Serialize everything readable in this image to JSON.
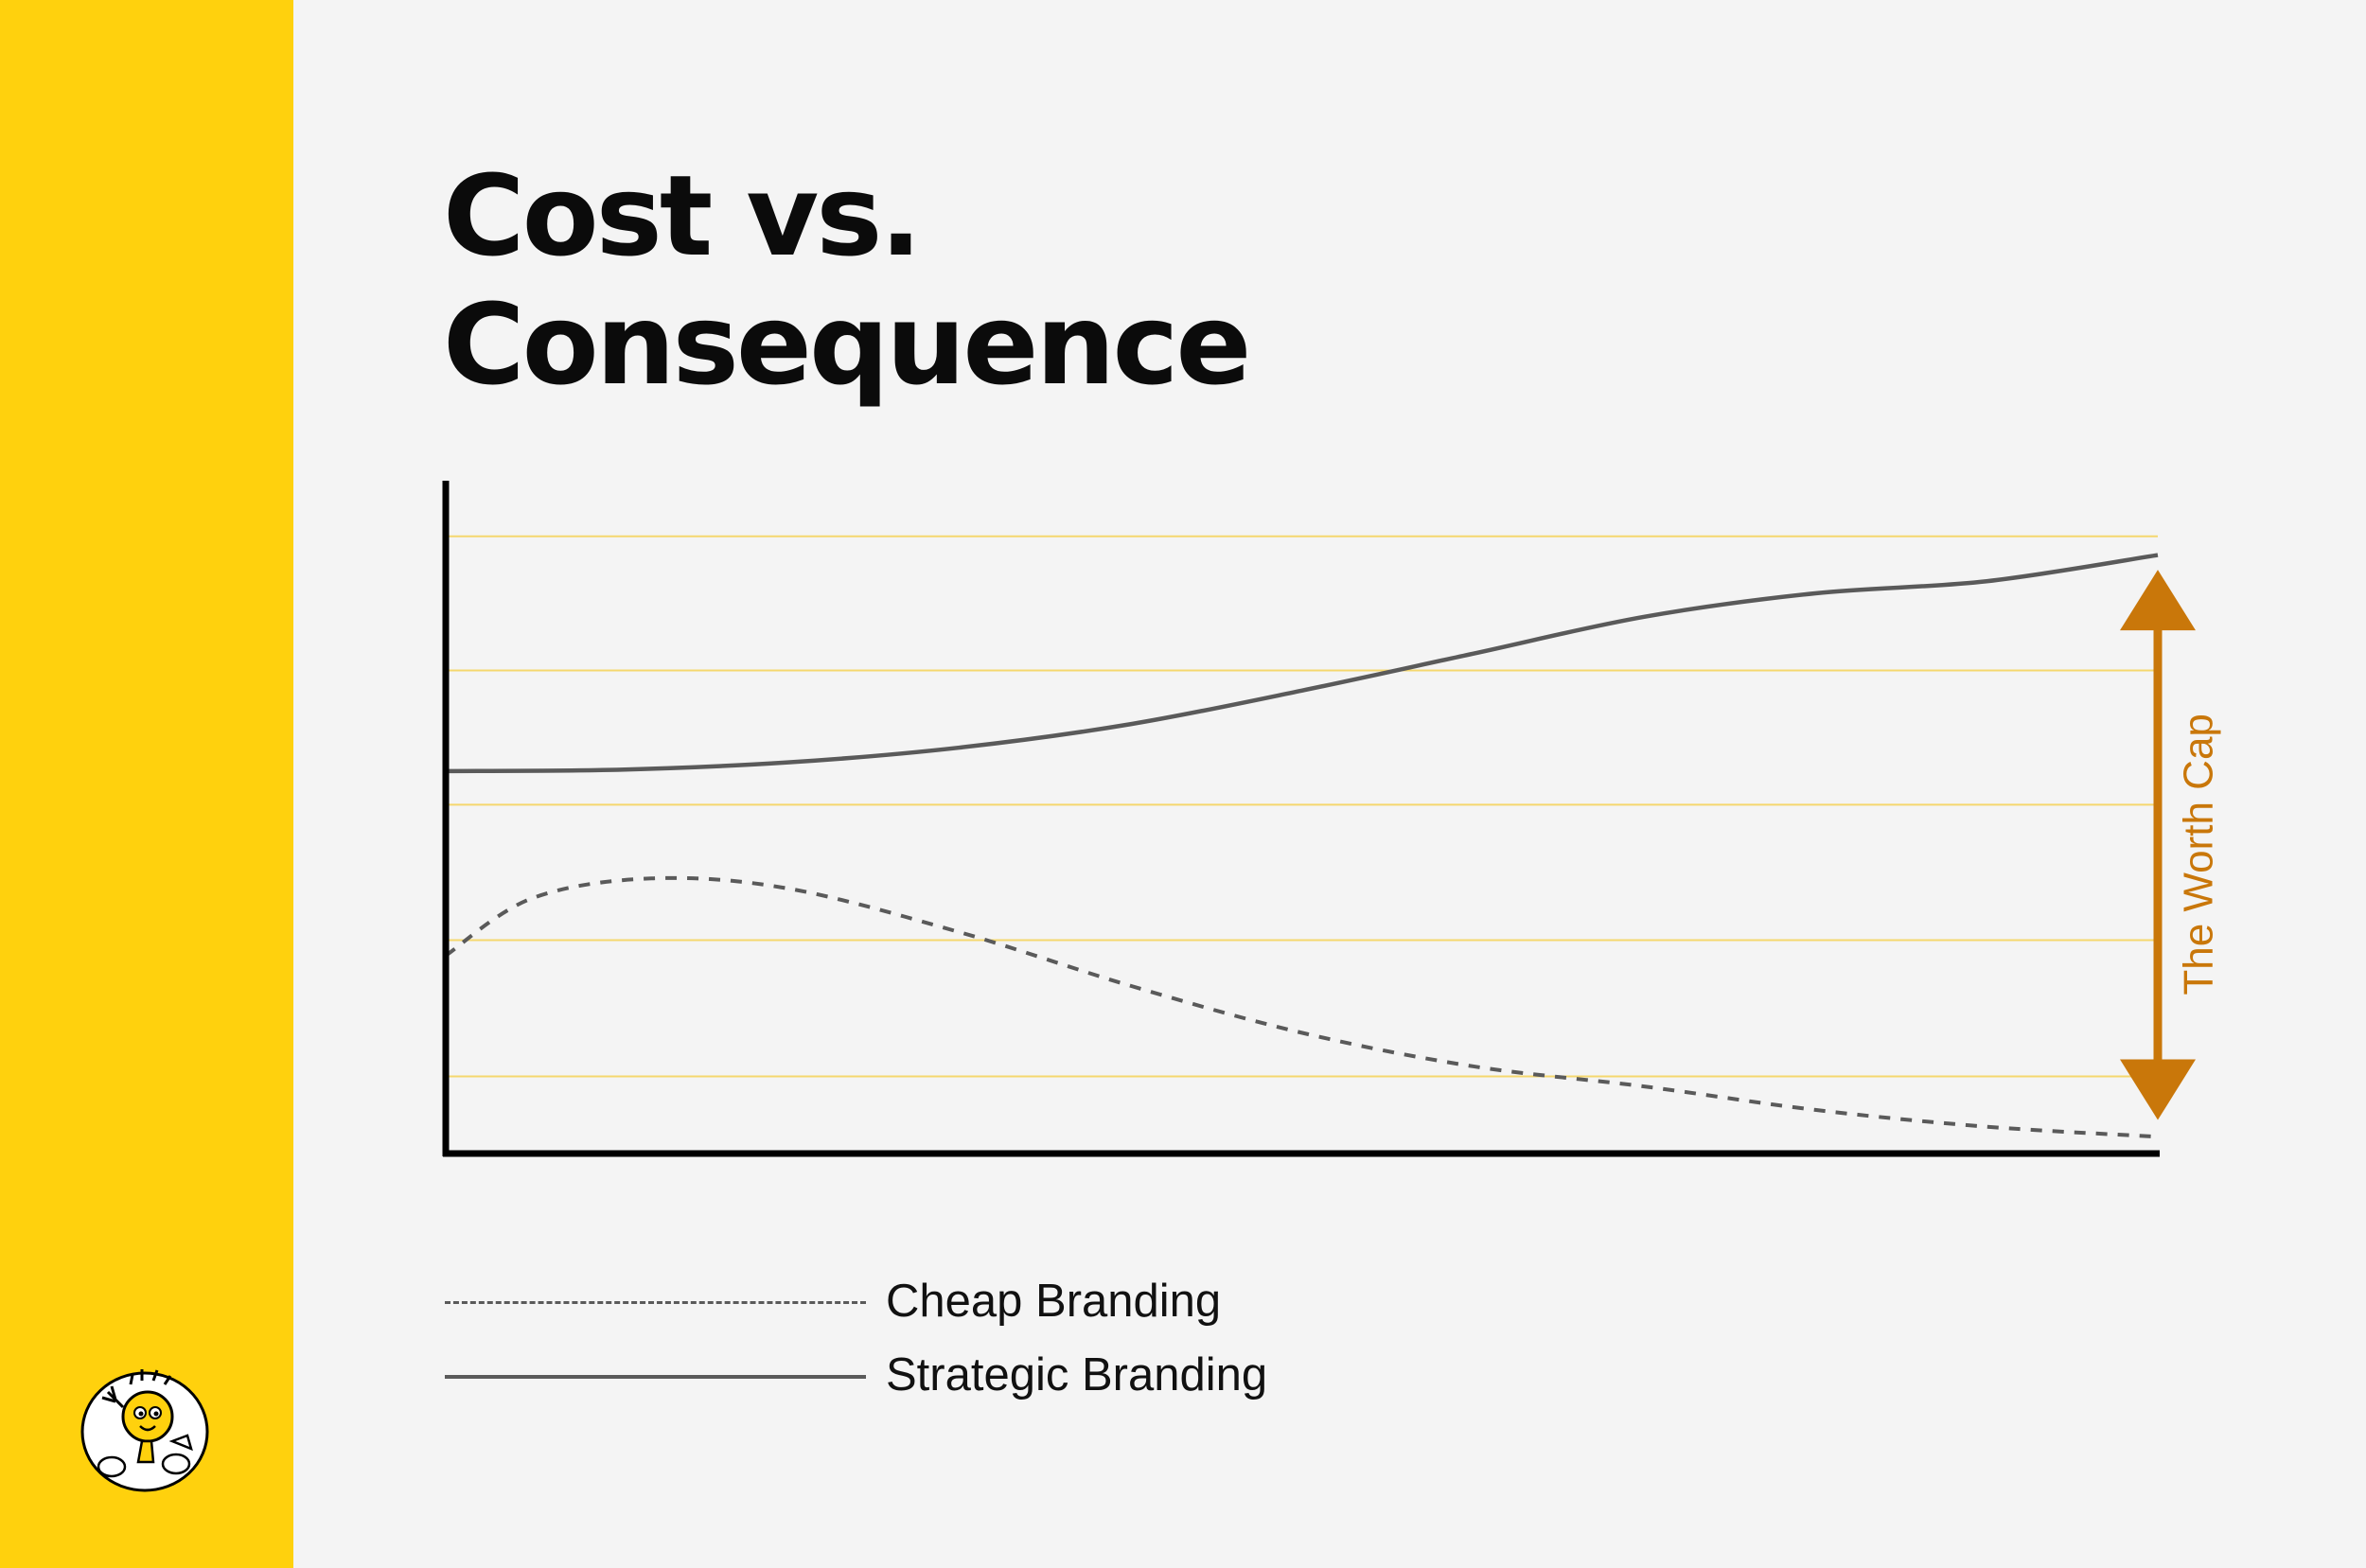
{
  "title": {
    "line1": "Cost vs.",
    "line2": "Consequence"
  },
  "colors": {
    "sidebar": "#FFD10D",
    "background": "#f4f4f4",
    "gridline": "#F5D76E",
    "series_line": "#5a5a5a",
    "annotation": "#C9770A",
    "axis": "#000000"
  },
  "icons": {
    "mascot": "lightbulb-mascot-icon"
  },
  "chart_data": {
    "type": "line",
    "title": "",
    "xlabel": "",
    "ylabel": "",
    "xlim": [
      0,
      100
    ],
    "ylim": [
      0,
      100
    ],
    "grid": "horizontal",
    "gridlines": [
      11.5,
      31.8,
      52.0,
      72.0,
      92.0
    ],
    "series": [
      {
        "name": "Strategic Branding",
        "style": "solid",
        "x": [
          0,
          10,
          20,
          30,
          40,
          50,
          60,
          70,
          80,
          90,
          100
        ],
        "y": [
          57.0,
          57.2,
          58.3,
          60.5,
          64.0,
          69.0,
          74.5,
          80.0,
          83.5,
          85.3,
          89.2
        ]
      },
      {
        "name": "Cheap Branding",
        "style": "dashed",
        "x": [
          0,
          5,
          12,
          20,
          30,
          40,
          50,
          60,
          70,
          80,
          90,
          100
        ],
        "y": [
          29.5,
          38.0,
          41.0,
          39.5,
          33.0,
          25.0,
          18.0,
          13.0,
          10.0,
          6.5,
          4.0,
          2.5
        ]
      }
    ],
    "annotations": [
      {
        "text": "The Worth Cap",
        "type": "double-arrow",
        "x": 100,
        "y_from": 87.0,
        "y_to": 5.0
      }
    ],
    "legend": {
      "position": "bottom-left",
      "entries": [
        {
          "label": "Cheap Branding",
          "style": "dashed"
        },
        {
          "label": "Strategic Branding",
          "style": "solid"
        }
      ]
    }
  }
}
